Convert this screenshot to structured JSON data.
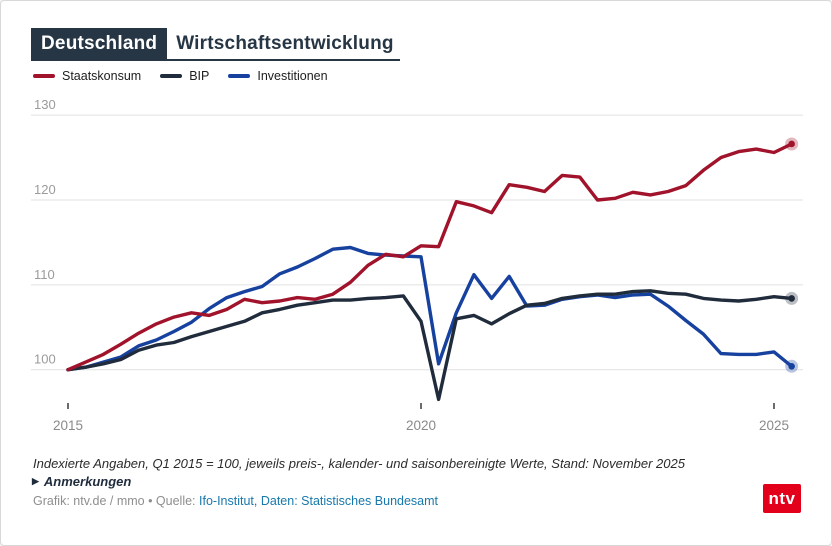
{
  "header": {
    "badge": "Deutschland",
    "title": "Wirtschaftsentwicklung"
  },
  "chart_data": {
    "type": "line",
    "x_axis": {
      "unit": "quarterly",
      "start": "Q1 2015",
      "end": "Q2 2025",
      "ticks": [
        {
          "label": "2015",
          "quarter_index": 0
        },
        {
          "label": "2020",
          "quarter_index": 20
        },
        {
          "label": "2025",
          "quarter_index": 40
        }
      ]
    },
    "y_axis": {
      "gridlines": [
        100,
        110,
        120,
        130
      ],
      "note": "Index, Q1 2015 = 100"
    },
    "grid_color": "#e1e1e1",
    "tick_color": "#3a3a3a",
    "series": [
      {
        "name": "Staatskonsum",
        "color": "#a1122b",
        "values": [
          100,
          100.9,
          101.8,
          103,
          104.3,
          105.4,
          106.2,
          106.7,
          106.4,
          107.1,
          108.3,
          107.9,
          108.1,
          108.5,
          108.3,
          108.9,
          110.3,
          112.3,
          113.6,
          113.3,
          114.6,
          114.5,
          119.8,
          119.3,
          118.5,
          121.8,
          121.5,
          121,
          122.9,
          122.7,
          120,
          120.2,
          120.9,
          120.6,
          121,
          121.7,
          123.5,
          125,
          125.7,
          126,
          125.6,
          126.6
        ]
      },
      {
        "name": "BIP",
        "color": "#202c3c",
        "values": [
          100,
          100.3,
          100.7,
          101.2,
          102.3,
          102.9,
          103.2,
          103.9,
          104.5,
          105.1,
          105.7,
          106.7,
          107.1,
          107.6,
          107.9,
          108.2,
          108.2,
          108.4,
          108.5,
          108.7,
          105.7,
          96.5,
          106,
          106.4,
          105.4,
          106.6,
          107.6,
          107.8,
          108.4,
          108.7,
          108.9,
          108.9,
          109.2,
          109.3,
          109,
          108.9,
          108.4,
          108.2,
          108.1,
          108.3,
          108.6,
          108.4
        ]
      },
      {
        "name": "Investitionen",
        "color": "#17419f",
        "values": [
          100,
          100.3,
          100.9,
          101.5,
          102.8,
          103.5,
          104.5,
          105.6,
          107.2,
          108.5,
          109.2,
          109.8,
          111.3,
          112.1,
          113.1,
          114.2,
          114.4,
          113.7,
          113.5,
          113.4,
          113.3,
          100.7,
          106.7,
          111.2,
          108.4,
          111,
          107.5,
          107.6,
          108.3,
          108.6,
          108.8,
          108.5,
          108.8,
          108.9,
          107.5,
          105.8,
          104.2,
          101.9,
          101.8,
          101.8,
          102.1,
          100.4
        ]
      }
    ]
  },
  "footnote": "Indexierte Angaben, Q1 2015 = 100, jeweils preis-, kalender- und saisonbereinigte Werte, Stand: November 2025",
  "notes": {
    "arrow": "▶",
    "label": "Anmerkungen"
  },
  "source": {
    "prefix": "Grafik: ntv.de / mmo • Quelle: ",
    "link": "Ifo-Institut, Daten: Statistisches Bundesamt"
  },
  "logo": "ntv"
}
